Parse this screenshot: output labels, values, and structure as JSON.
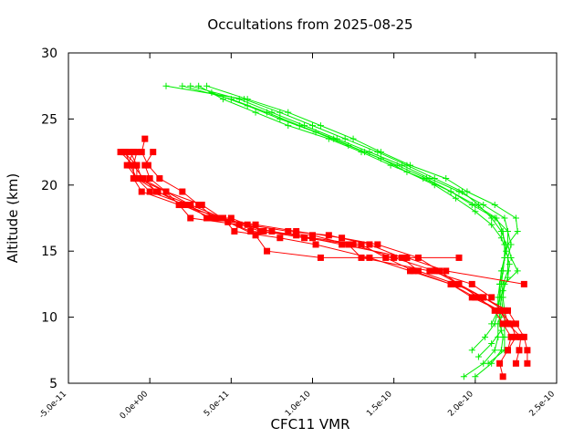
{
  "chart_data": {
    "type": "scatter",
    "title": "Occultations from 2025-08-25",
    "xlabel": "CFC11 VMR",
    "ylabel": "Altitude (km)",
    "xlim": [
      -5e-11,
      2.5e-10
    ],
    "ylim": [
      5,
      30
    ],
    "x_ticks": [
      -5e-11,
      0,
      5e-11,
      1e-10,
      1.5e-10,
      2e-10,
      2.5e-10
    ],
    "x_tick_labels": [
      "-5.0e-11",
      "0.0e+00",
      "5.0e-11",
      "1.0e-10",
      "1.5e-10",
      "2.0e-10",
      "2.5e-10"
    ],
    "y_ticks": [
      5,
      10,
      15,
      20,
      25,
      30
    ],
    "y_tick_labels": [
      "5",
      "10",
      "15",
      "20",
      "25",
      "30"
    ],
    "grid": false,
    "legend": "none",
    "colors": {
      "red": "#ff0000",
      "green": "#00ee00"
    },
    "series": [
      {
        "color": "red",
        "marker": "square",
        "points": [
          [
            2.17e-10,
            5.5
          ],
          [
            2.15e-10,
            6.5
          ],
          [
            2.2e-10,
            7.5
          ],
          [
            2.25e-10,
            8.5
          ],
          [
            2.22e-10,
            9.5
          ],
          [
            2.15e-10,
            10.5
          ],
          [
            2e-10,
            11.5
          ],
          [
            1.85e-10,
            12.5
          ],
          [
            1.62e-10,
            13.5
          ],
          [
            1.45e-10,
            14.5
          ],
          [
            1.3e-10,
            15.5
          ],
          [
            1e-10,
            16.0
          ],
          [
            7.5e-11,
            16.5
          ],
          [
            5.5e-11,
            17.0
          ],
          [
            2.5e-11,
            17.5
          ],
          [
            1.8e-11,
            18.5
          ],
          [
            1e-11,
            19.5
          ],
          [
            -5e-12,
            20.5
          ],
          [
            -8e-12,
            21.5
          ],
          [
            -1.2e-11,
            22.5
          ]
        ]
      },
      {
        "color": "red",
        "marker": "square",
        "points": [
          [
            2.25e-10,
            6.5
          ],
          [
            2.27e-10,
            7.5
          ],
          [
            2.28e-10,
            8.5
          ],
          [
            2.2e-10,
            9.5
          ],
          [
            2.18e-10,
            10.5
          ],
          [
            2.05e-10,
            11.5
          ],
          [
            1.88e-10,
            12.5
          ],
          [
            1.65e-10,
            13.5
          ],
          [
            1.55e-10,
            14.5
          ],
          [
            1.35e-10,
            15.5
          ],
          [
            1.1e-10,
            16.2
          ],
          [
            8.5e-11,
            16.5
          ],
          [
            6e-11,
            17.0
          ],
          [
            3.5e-11,
            17.5
          ],
          [
            2.5e-11,
            18.5
          ],
          [
            1e-11,
            19.5
          ],
          [
            0.0,
            20.5
          ],
          [
            -3e-12,
            21.5
          ],
          [
            2e-12,
            22.5
          ]
        ]
      },
      {
        "color": "red",
        "marker": "square",
        "points": [
          [
            2.32e-10,
            6.5
          ],
          [
            2.32e-10,
            7.5
          ],
          [
            2.3e-10,
            8.5
          ],
          [
            2.25e-10,
            9.5
          ],
          [
            2.2e-10,
            10.5
          ],
          [
            2.05e-10,
            11.5
          ],
          [
            1.9e-10,
            12.5
          ],
          [
            1.78e-10,
            13.5
          ],
          [
            1.65e-10,
            14.5
          ],
          [
            1.4e-10,
            15.5
          ],
          [
            1.18e-10,
            16.0
          ],
          [
            9e-11,
            16.5
          ],
          [
            6.5e-11,
            17.0
          ],
          [
            4e-11,
            17.5
          ],
          [
            3e-11,
            18.5
          ],
          [
            2e-11,
            19.5
          ],
          [
            6e-12,
            20.5
          ],
          [
            -1e-12,
            21.5
          ],
          [
            -5e-12,
            22.5
          ],
          [
            -3e-12,
            23.5
          ]
        ]
      },
      {
        "color": "red",
        "marker": "square",
        "points": [
          [
            2.2e-10,
            7.5
          ],
          [
            2.22e-10,
            8.5
          ],
          [
            2.17e-10,
            9.5
          ],
          [
            2.12e-10,
            10.5
          ],
          [
            2.02e-10,
            11.5
          ],
          [
            1.9e-10,
            12.5
          ],
          [
            1.75e-10,
            13.5
          ],
          [
            1.5e-10,
            14.5
          ],
          [
            1.25e-10,
            15.5
          ],
          [
            9.5e-11,
            16.0
          ],
          [
            7e-11,
            16.5
          ],
          [
            5e-11,
            17.5
          ],
          [
            3.8e-11,
            17.5
          ],
          [
            2e-11,
            18.5
          ],
          [
            5e-12,
            19.5
          ],
          [
            -8e-12,
            20.5
          ],
          [
            -1.2e-11,
            21.5
          ],
          [
            -1.5e-11,
            22.5
          ]
        ]
      },
      {
        "color": "red",
        "marker": "square",
        "points": [
          [
            2.3e-10,
            12.5
          ],
          [
            1.82e-10,
            13.5
          ],
          [
            1.58e-10,
            14.5
          ],
          [
            1.18e-10,
            15.5
          ],
          [
            9e-11,
            16.2
          ],
          [
            6.8e-11,
            16.5
          ],
          [
            4.5e-11,
            17.5
          ],
          [
            1.8e-11,
            18.5
          ],
          [
            -5e-12,
            19.5
          ],
          [
            -1e-11,
            20.5
          ],
          [
            -1e-11,
            21.5
          ],
          [
            -8e-12,
            22.5
          ]
        ]
      },
      {
        "color": "red",
        "marker": "square",
        "points": [
          [
            1.9e-10,
            14.5
          ],
          [
            1.05e-10,
            14.5
          ],
          [
            7.2e-11,
            15.0
          ],
          [
            6.5e-11,
            16.2
          ],
          [
            4.8e-11,
            17.2
          ],
          [
            3.2e-11,
            18.5
          ],
          [
            1e-11,
            19.5
          ],
          [
            -8e-12,
            20.5
          ],
          [
            -8e-12,
            21.5
          ],
          [
            -1.6e-11,
            22.5
          ]
        ]
      },
      {
        "color": "red",
        "marker": "square",
        "points": [
          [
            2.1e-10,
            11.5
          ],
          [
            1.98e-10,
            12.5
          ],
          [
            1.72e-10,
            13.5
          ],
          [
            1.3e-10,
            14.5
          ],
          [
            1.22e-10,
            15.5
          ],
          [
            1e-10,
            16.2
          ],
          [
            6.2e-11,
            16.5
          ],
          [
            4.2e-11,
            17.5
          ],
          [
            2.2e-11,
            18.5
          ],
          [
            0.0,
            19.5
          ],
          [
            -8e-12,
            20.5
          ],
          [
            -1.4e-11,
            21.5
          ],
          [
            -1e-11,
            22.5
          ]
        ]
      },
      {
        "color": "red",
        "marker": "square",
        "points": [
          [
            2.2e-10,
            9.5
          ],
          [
            2.15e-10,
            10.5
          ],
          [
            1.98e-10,
            11.5
          ],
          [
            1.85e-10,
            12.5
          ],
          [
            1.6e-10,
            13.5
          ],
          [
            1.35e-10,
            14.5
          ],
          [
            1.02e-10,
            15.5
          ],
          [
            8e-11,
            16.0
          ],
          [
            5.2e-11,
            16.5
          ],
          [
            4.5e-11,
            17.5
          ],
          [
            2.5e-11,
            18.5
          ],
          [
            4e-12,
            19.5
          ],
          [
            -4e-12,
            20.5
          ],
          [
            -1e-11,
            21.5
          ],
          [
            -1.8e-11,
            22.5
          ]
        ]
      },
      {
        "color": "green",
        "marker": "plus",
        "points": [
          [
            1.93e-10,
            5.5
          ],
          [
            2.05e-10,
            6.5
          ],
          [
            2.12e-10,
            7.5
          ],
          [
            2.14e-10,
            8.5
          ],
          [
            2.14e-10,
            9.5
          ],
          [
            2.16e-10,
            10.5
          ],
          [
            2.15e-10,
            11.5
          ],
          [
            2.15e-10,
            12.5
          ],
          [
            2.16e-10,
            13.5
          ],
          [
            2.18e-10,
            14.5
          ],
          [
            2.2e-10,
            15.5
          ],
          [
            2.2e-10,
            16.5
          ],
          [
            2.18e-10,
            17.5
          ],
          [
            2.05e-10,
            18.5
          ],
          [
            1.9e-10,
            19.5
          ],
          [
            1.72e-10,
            20.5
          ],
          [
            1.55e-10,
            21.5
          ],
          [
            1.35e-10,
            22.5
          ],
          [
            1.15e-10,
            23.5
          ],
          [
            9.5e-11,
            24.5
          ],
          [
            7.5e-11,
            25.5
          ],
          [
            5.5e-11,
            26.5
          ],
          [
            2.5e-11,
            27.5
          ]
        ]
      },
      {
        "color": "green",
        "marker": "plus",
        "points": [
          [
            2e-10,
            5.5
          ],
          [
            2.1e-10,
            6.5
          ],
          [
            2.16e-10,
            7.5
          ],
          [
            2.17e-10,
            8.5
          ],
          [
            2.15e-10,
            9.5
          ],
          [
            2.17e-10,
            10.5
          ],
          [
            2.16e-10,
            11.5
          ],
          [
            2.17e-10,
            12.5
          ],
          [
            2.2e-10,
            13.5
          ],
          [
            2.2e-10,
            14.5
          ],
          [
            2.22e-10,
            15.5
          ],
          [
            2.2e-10,
            16.5
          ],
          [
            2.12e-10,
            17.5
          ],
          [
            1.98e-10,
            18.5
          ],
          [
            1.85e-10,
            19.5
          ],
          [
            1.68e-10,
            20.5
          ],
          [
            1.48e-10,
            21.5
          ],
          [
            1.3e-10,
            22.5
          ],
          [
            1.1e-10,
            23.5
          ],
          [
            8.5e-11,
            24.5
          ],
          [
            6.5e-11,
            25.5
          ],
          [
            4.5e-11,
            26.5
          ],
          [
            3e-11,
            27.5
          ]
        ]
      },
      {
        "color": "green",
        "marker": "plus",
        "points": [
          [
            2.08e-10,
            6.5
          ],
          [
            2.18e-10,
            7.5
          ],
          [
            2.18e-10,
            8.5
          ],
          [
            2.18e-10,
            9.5
          ],
          [
            2.18e-10,
            10.5
          ],
          [
            2.17e-10,
            11.5
          ],
          [
            2.18e-10,
            12.5
          ],
          [
            2.26e-10,
            13.5
          ],
          [
            2.22e-10,
            14.5
          ],
          [
            2.2e-10,
            15.5
          ],
          [
            2.26e-10,
            16.5
          ],
          [
            2.25e-10,
            17.5
          ],
          [
            2.12e-10,
            18.5
          ],
          [
            1.95e-10,
            19.5
          ],
          [
            1.82e-10,
            20.5
          ],
          [
            1.6e-10,
            21.5
          ],
          [
            1.42e-10,
            22.5
          ],
          [
            1.25e-10,
            23.5
          ],
          [
            1.05e-10,
            24.5
          ],
          [
            8.5e-11,
            25.5
          ],
          [
            6e-11,
            26.5
          ],
          [
            3.5e-11,
            27.5
          ]
        ]
      },
      {
        "color": "green",
        "marker": "plus",
        "points": [
          [
            1.98e-10,
            7.5
          ],
          [
            2.06e-10,
            8.5
          ],
          [
            2.12e-10,
            9.5
          ],
          [
            2.14e-10,
            10.5
          ],
          [
            2.14e-10,
            11.5
          ],
          [
            2.15e-10,
            12.5
          ],
          [
            2.17e-10,
            13.5
          ],
          [
            2.18e-10,
            14.5
          ],
          [
            2.19e-10,
            15.5
          ],
          [
            2.16e-10,
            16.5
          ],
          [
            2.1e-10,
            17.5
          ],
          [
            2.02e-10,
            18.5
          ],
          [
            1.92e-10,
            19.5
          ],
          [
            1.75e-10,
            20.5
          ],
          [
            1.58e-10,
            21.5
          ],
          [
            1.4e-10,
            22.5
          ],
          [
            1.2e-10,
            23.5
          ],
          [
            1e-10,
            24.5
          ],
          [
            8e-11,
            25.5
          ],
          [
            5.8e-11,
            26.5
          ],
          [
            1e-11,
            27.5
          ]
        ]
      },
      {
        "color": "green",
        "marker": "plus",
        "points": [
          [
            2.1e-10,
            9.5
          ],
          [
            2.14e-10,
            10.5
          ],
          [
            2.15e-10,
            11.5
          ],
          [
            2.16e-10,
            12.5
          ],
          [
            2.17e-10,
            13.5
          ],
          [
            2.18e-10,
            14.5
          ],
          [
            2.18e-10,
            15.5
          ],
          [
            2.17e-10,
            16.5
          ],
          [
            2.13e-10,
            17.5
          ],
          [
            2e-10,
            18.5
          ],
          [
            1.85e-10,
            19.5
          ],
          [
            1.7e-10,
            20.5
          ],
          [
            1.52e-10,
            21.5
          ],
          [
            1.32e-10,
            22.5
          ],
          [
            1.13e-10,
            23.5
          ],
          [
            9.2e-11,
            24.5
          ],
          [
            7.2e-11,
            25.5
          ],
          [
            5e-11,
            26.5
          ],
          [
            2e-11,
            27.5
          ]
        ]
      },
      {
        "color": "green",
        "marker": "plus",
        "points": [
          [
            2.02e-10,
            7.0
          ],
          [
            2.1e-10,
            8.0
          ],
          [
            2.16e-10,
            9.0
          ],
          [
            2.15e-10,
            10.0
          ],
          [
            2.14e-10,
            11.0
          ],
          [
            2.17e-10,
            12.0
          ],
          [
            2.2e-10,
            13.0
          ],
          [
            2.21e-10,
            14.0
          ],
          [
            2.19e-10,
            15.0
          ],
          [
            2.16e-10,
            16.0
          ],
          [
            2.1e-10,
            17.0
          ],
          [
            2e-10,
            18.0
          ],
          [
            1.88e-10,
            19.0
          ],
          [
            1.75e-10,
            20.0
          ],
          [
            1.58e-10,
            21.0
          ],
          [
            1.42e-10,
            22.0
          ],
          [
            1.22e-10,
            23.0
          ],
          [
            1.02e-10,
            24.0
          ],
          [
            8e-11,
            25.0
          ],
          [
            6e-11,
            26.0
          ],
          [
            3.8e-11,
            27.0
          ]
        ]
      }
    ]
  }
}
